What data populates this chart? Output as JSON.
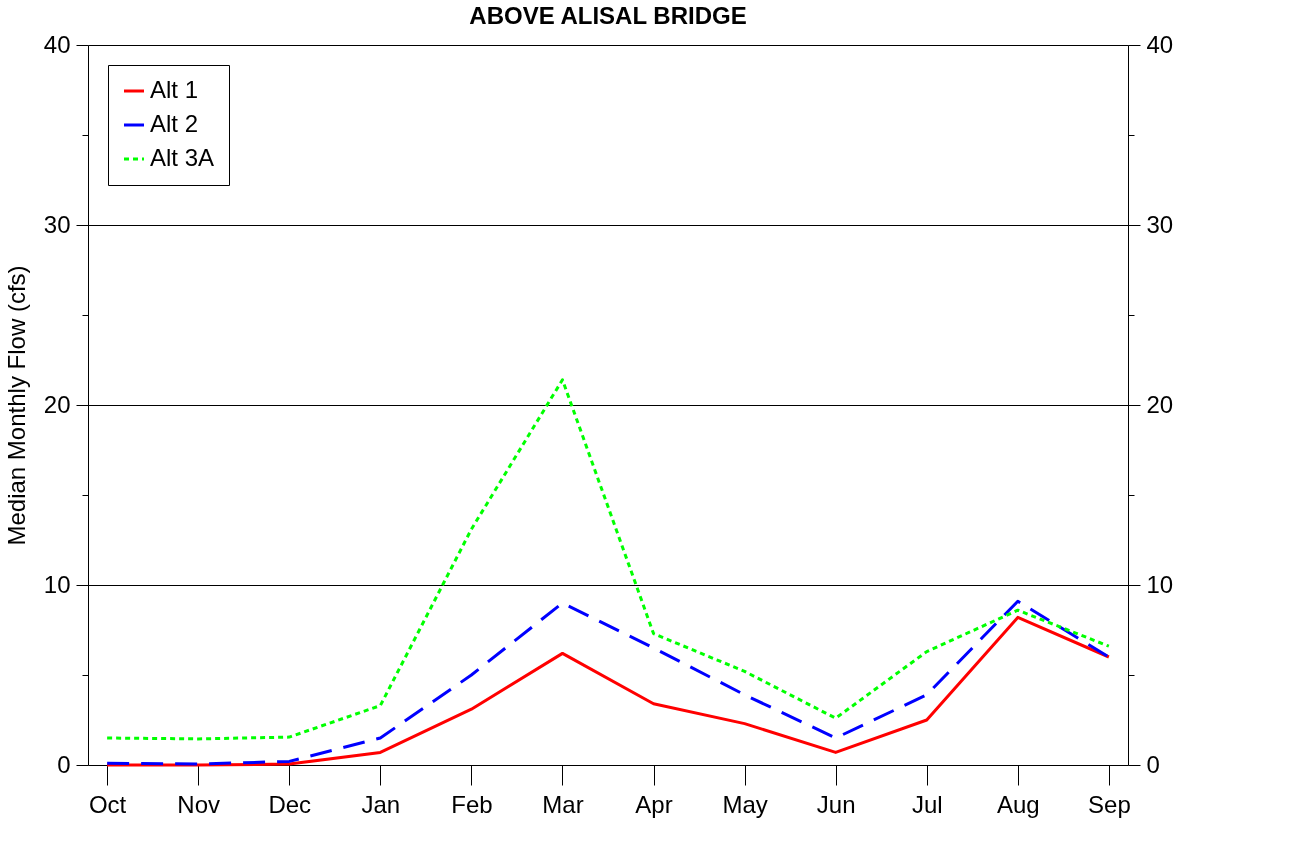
{
  "chart_data": {
    "type": "line",
    "title": "ABOVE ALISAL BRIDGE",
    "ylabel": "Median Monthly Flow (cfs)",
    "categories": [
      "Oct",
      "Nov",
      "Dec",
      "Jan",
      "Feb",
      "Mar",
      "Apr",
      "May",
      "Jun",
      "Jul",
      "Aug",
      "Sep"
    ],
    "series": [
      {
        "name": "Alt 1",
        "color": "#ff0000",
        "line_style": "solid",
        "values": [
          0,
          0,
          0.05,
          0.7,
          3.1,
          6.2,
          3.4,
          2.3,
          0.7,
          2.5,
          8.2,
          6.0
        ]
      },
      {
        "name": "Alt 2",
        "color": "#0000ff",
        "line_style": "dashed",
        "values": [
          0.1,
          0.05,
          0.2,
          1.5,
          5.0,
          9.0,
          6.5,
          3.9,
          1.5,
          3.9,
          9.1,
          6.0
        ]
      },
      {
        "name": "Alt 3A",
        "color": "#00ff00",
        "line_style": "dotted",
        "values": [
          1.5,
          1.45,
          1.55,
          3.3,
          13.1,
          21.4,
          7.3,
          5.2,
          2.6,
          6.3,
          8.6,
          6.6
        ]
      }
    ],
    "ylim": [
      0,
      40
    ],
    "yticks": [
      0,
      {
        "value": 5,
        "label": null
      },
      10,
      {
        "value": 15,
        "label": null
      },
      20,
      {
        "value": 25,
        "label": null
      },
      30,
      {
        "value": 35,
        "label": null
      },
      40
    ],
    "y2lim": [
      0,
      40
    ],
    "y2ticks": [
      0,
      {
        "value": 5,
        "label": null
      },
      10,
      {
        "value": 15,
        "label": null
      },
      20,
      {
        "value": 25,
        "label": null
      },
      30,
      {
        "value": 35,
        "label": null
      },
      40
    ],
    "grid": "y",
    "legend": "top left",
    "marker": "none"
  }
}
